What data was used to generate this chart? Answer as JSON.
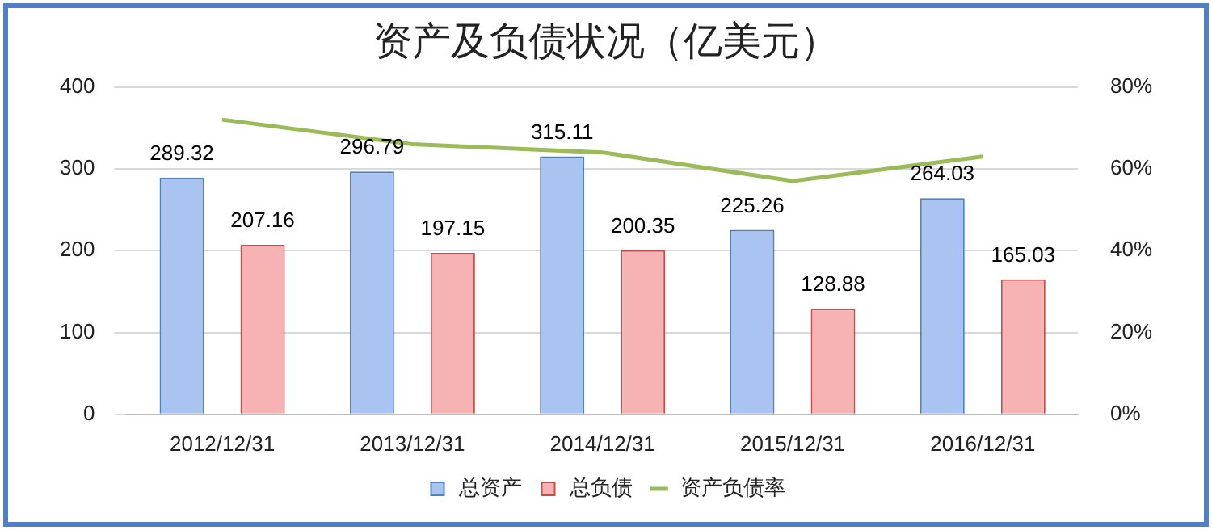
{
  "chart_data": {
    "type": "bar",
    "title": "资产及负债状况（亿美元）",
    "categories": [
      "2012/12/31",
      "2013/12/31",
      "2014/12/31",
      "2015/12/31",
      "2016/12/31"
    ],
    "series": [
      {
        "name": "总资产",
        "color": "#a9c4f0",
        "values": [
          289.32,
          296.79,
          315.11,
          225.26,
          264.03
        ],
        "value_labels": [
          "289.32",
          "296.79",
          "315.11",
          "225.26",
          "264.03"
        ]
      },
      {
        "name": "总负债",
        "color": "#f7b3b3",
        "values": [
          207.16,
          197.15,
          200.35,
          128.88,
          165.03
        ],
        "value_labels": [
          "207.16",
          "197.15",
          "200.35",
          "128.88",
          "165.03"
        ]
      },
      {
        "name": "资产负债率",
        "type": "line",
        "axis": "y2",
        "color": "#9bbb59",
        "values": [
          72,
          66,
          64,
          57,
          63
        ]
      }
    ],
    "ylim": [
      0,
      400
    ],
    "yticks": [
      0,
      100,
      200,
      300,
      400
    ],
    "y2lim": [
      0,
      80
    ],
    "y2ticks": [
      {
        "value": 0,
        "label": "0%"
      },
      {
        "value": 20,
        "label": "20%"
      },
      {
        "value": 40,
        "label": "40%"
      },
      {
        "value": 60,
        "label": "60%"
      },
      {
        "value": 80,
        "label": "80%"
      }
    ],
    "grid": "y",
    "legend": "bottom",
    "marker": "none"
  }
}
